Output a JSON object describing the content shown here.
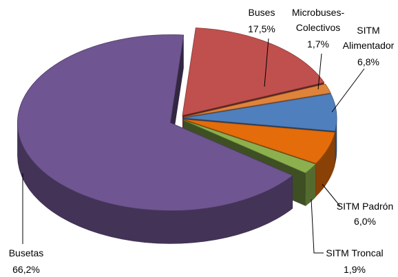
{
  "chart_data": {
    "type": "pie3d",
    "categories": [
      "Buses",
      "Microbuses-Colectivos",
      "SITM Alimentador",
      "SITM Padrón",
      "SITM Troncal",
      "Busetas"
    ],
    "values": [
      17.5,
      1.7,
      6.8,
      6.0,
      1.9,
      66.2
    ],
    "value_labels": [
      "17,5%",
      "1,7%",
      "6,8%",
      "6,0%",
      "1,9%",
      "66,2%"
    ],
    "colors": [
      "#c0504d",
      "#e0833a",
      "#4f7fbd",
      "#e46c0a",
      "#8db04f",
      "#6f5591"
    ]
  }
}
